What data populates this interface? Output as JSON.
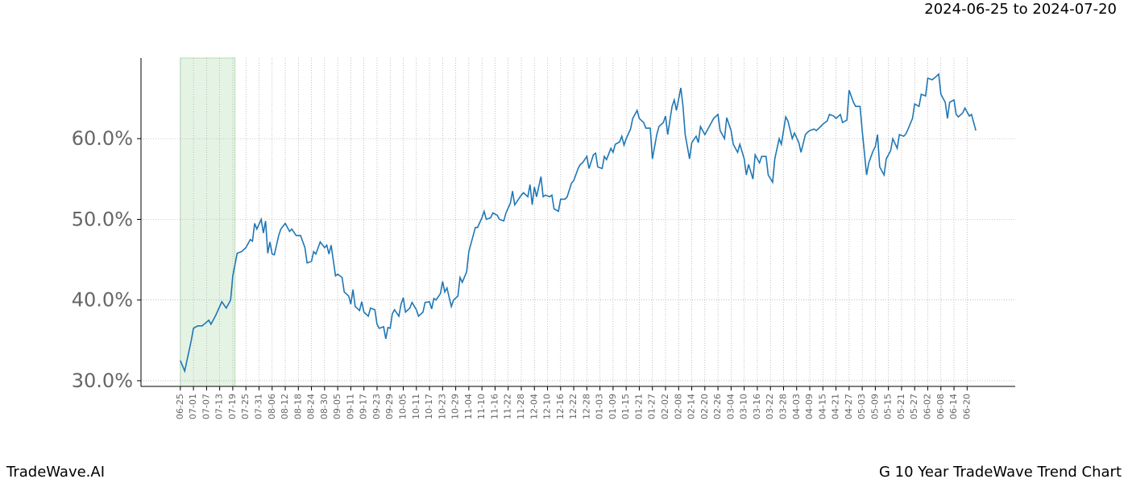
{
  "chart_data": {
    "type": "line",
    "subtitle": "2024-06-25 to 2024-07-20",
    "footer_left": "TradeWave.AI",
    "footer_right": "G 10 Year TradeWave Trend Chart",
    "highlight": {
      "x": [
        0,
        25
      ],
      "color": "#2ca02c"
    },
    "xlim": [
      -18,
      382
    ],
    "ylim": [
      29.3,
      70
    ],
    "grid": true,
    "xticks": [
      {
        "value": 0,
        "label": "06-25"
      },
      {
        "value": 6,
        "label": "07-01"
      },
      {
        "value": 12,
        "label": "07-07"
      },
      {
        "value": 18,
        "label": "07-13"
      },
      {
        "value": 24,
        "label": "07-19"
      },
      {
        "value": 30,
        "label": "07-25"
      },
      {
        "value": 36,
        "label": "07-31"
      },
      {
        "value": 42,
        "label": "08-06"
      },
      {
        "value": 48,
        "label": "08-12"
      },
      {
        "value": 54,
        "label": "08-18"
      },
      {
        "value": 60,
        "label": "08-24"
      },
      {
        "value": 66,
        "label": "08-30"
      },
      {
        "value": 72,
        "label": "09-05"
      },
      {
        "value": 78,
        "label": "09-11"
      },
      {
        "value": 84,
        "label": "09-17"
      },
      {
        "value": 90,
        "label": "09-23"
      },
      {
        "value": 96,
        "label": "09-29"
      },
      {
        "value": 102,
        "label": "10-05"
      },
      {
        "value": 108,
        "label": "10-11"
      },
      {
        "value": 114,
        "label": "10-17"
      },
      {
        "value": 120,
        "label": "10-23"
      },
      {
        "value": 126,
        "label": "10-29"
      },
      {
        "value": 132,
        "label": "11-04"
      },
      {
        "value": 138,
        "label": "11-10"
      },
      {
        "value": 144,
        "label": "11-16"
      },
      {
        "value": 150,
        "label": "11-22"
      },
      {
        "value": 156,
        "label": "11-28"
      },
      {
        "value": 162,
        "label": "12-04"
      },
      {
        "value": 168,
        "label": "12-10"
      },
      {
        "value": 174,
        "label": "12-16"
      },
      {
        "value": 180,
        "label": "12-22"
      },
      {
        "value": 186,
        "label": "12-28"
      },
      {
        "value": 192,
        "label": "01-03"
      },
      {
        "value": 198,
        "label": "01-09"
      },
      {
        "value": 204,
        "label": "01-15"
      },
      {
        "value": 210,
        "label": "01-21"
      },
      {
        "value": 216,
        "label": "01-27"
      },
      {
        "value": 222,
        "label": "02-02"
      },
      {
        "value": 228,
        "label": "02-08"
      },
      {
        "value": 234,
        "label": "02-14"
      },
      {
        "value": 240,
        "label": "02-20"
      },
      {
        "value": 246,
        "label": "02-26"
      },
      {
        "value": 252,
        "label": "03-04"
      },
      {
        "value": 258,
        "label": "03-10"
      },
      {
        "value": 264,
        "label": "03-16"
      },
      {
        "value": 270,
        "label": "03-22"
      },
      {
        "value": 276,
        "label": "03-28"
      },
      {
        "value": 282,
        "label": "04-03"
      },
      {
        "value": 288,
        "label": "04-09"
      },
      {
        "value": 294,
        "label": "04-15"
      },
      {
        "value": 300,
        "label": "04-21"
      },
      {
        "value": 306,
        "label": "04-27"
      },
      {
        "value": 312,
        "label": "05-03"
      },
      {
        "value": 318,
        "label": "05-09"
      },
      {
        "value": 324,
        "label": "05-15"
      },
      {
        "value": 330,
        "label": "05-21"
      },
      {
        "value": 336,
        "label": "05-27"
      },
      {
        "value": 342,
        "label": "06-02"
      },
      {
        "value": 348,
        "label": "06-08"
      },
      {
        "value": 354,
        "label": "06-14"
      },
      {
        "value": 360,
        "label": "06-20"
      }
    ],
    "yticks": [
      {
        "value": 30,
        "label": "30.0%"
      },
      {
        "value": 40,
        "label": "40.0%"
      },
      {
        "value": 50,
        "label": "50.0%"
      },
      {
        "value": 60,
        "label": "60.0%"
      }
    ],
    "series": [
      {
        "color": "#1f77b4",
        "x": [
          0,
          2,
          5,
          6,
          8,
          10,
          13,
          14,
          16,
          19,
          21,
          23,
          24,
          26,
          28,
          30,
          32,
          33,
          34,
          35,
          37,
          38,
          39,
          40,
          41,
          42,
          43,
          45,
          46,
          48,
          50,
          51,
          53,
          55,
          57,
          58,
          60,
          61,
          62,
          64,
          66,
          67,
          68,
          69,
          71,
          72,
          74,
          75,
          77,
          78,
          79,
          80,
          82,
          83,
          84,
          86,
          87,
          89,
          90,
          91,
          93,
          94,
          95,
          96,
          97,
          98,
          100,
          101,
          102,
          103,
          105,
          106,
          108,
          109,
          111,
          112,
          114,
          115,
          116,
          117,
          119,
          120,
          121,
          122,
          124,
          125,
          127,
          128,
          129,
          131,
          132,
          134,
          135,
          136,
          138,
          139,
          140,
          142,
          143,
          145,
          146,
          148,
          149,
          151,
          152,
          153,
          154,
          156,
          157,
          159,
          160,
          161,
          162,
          163,
          165,
          166,
          167,
          169,
          170,
          171,
          173,
          174,
          176,
          177,
          179,
          180,
          182,
          183,
          184,
          186,
          187,
          189,
          190,
          191,
          193,
          194,
          195,
          197,
          198,
          199,
          201,
          202,
          203,
          204,
          206,
          207,
          209,
          210,
          212,
          213,
          215,
          216,
          218,
          219,
          221,
          222,
          223,
          225,
          226,
          227,
          229,
          230,
          231,
          233,
          234,
          236,
          237,
          238,
          240,
          241,
          243,
          244,
          246,
          247,
          249,
          250,
          252,
          253,
          255,
          256,
          258,
          259,
          260,
          262,
          263,
          265,
          266,
          268,
          269,
          271,
          272,
          274,
          275,
          277,
          278,
          280,
          281,
          283,
          284,
          286,
          287,
          288,
          290,
          291,
          293,
          294,
          296,
          297,
          299,
          300,
          302,
          303,
          305,
          306,
          308,
          309,
          311,
          312,
          314,
          315,
          317,
          318,
          319,
          320,
          322,
          323,
          325,
          326,
          328,
          329,
          331,
          332,
          333,
          335,
          336,
          338,
          339,
          341,
          342,
          344,
          345,
          347,
          348,
          350,
          351,
          352,
          354,
          355,
          356,
          358,
          359,
          361,
          362,
          364
        ],
        "values": [
          32.5,
          31.2,
          35,
          36.5,
          36.8,
          36.8,
          37.5,
          37,
          38,
          39.8,
          39,
          40,
          43,
          45.8,
          46,
          46.5,
          47.5,
          47.3,
          49.5,
          48.8,
          50,
          48.3,
          49.8,
          45.8,
          47.2,
          45.7,
          45.6,
          48,
          48.8,
          49.5,
          48.5,
          48.8,
          48,
          48,
          46.5,
          44.6,
          44.8,
          46,
          45.7,
          47.2,
          46.5,
          46.8,
          45.7,
          46.8,
          43,
          43.2,
          42.8,
          41,
          40.5,
          39.5,
          41.3,
          39.2,
          38.7,
          39.8,
          38.5,
          38,
          39,
          38.8,
          37,
          36.5,
          36.7,
          35.2,
          36.6,
          36.5,
          38.3,
          38.8,
          38,
          39.5,
          40.3,
          38.5,
          39,
          39.7,
          38.8,
          38,
          38.5,
          39.7,
          39.8,
          38.9,
          40.2,
          40,
          40.8,
          42.3,
          41,
          41.5,
          39.2,
          40,
          40.5,
          42.8,
          42.2,
          43.5,
          46,
          48,
          49,
          49,
          50.2,
          51,
          50,
          50.2,
          50.8,
          50.5,
          50,
          49.8,
          50.8,
          52,
          53.5,
          51.8,
          52.2,
          53,
          53.3,
          52.8,
          54.3,
          51.8,
          54,
          52.8,
          55.3,
          52.8,
          53,
          52.8,
          53,
          51.3,
          51,
          52.5,
          52.5,
          52.8,
          54.5,
          54.8,
          56.3,
          56.8,
          57,
          57.8,
          56.3,
          58,
          58.2,
          56.5,
          56.3,
          57.8,
          57.4,
          58.8,
          58.3,
          59.3,
          59.6,
          60.3,
          59.2,
          60,
          61.2,
          62.5,
          63.5,
          62.5,
          62,
          61.3,
          61.3,
          57.5,
          60.5,
          61.5,
          62,
          62.8,
          60.5,
          64,
          64.8,
          63.5,
          66.3,
          64,
          60.5,
          57.5,
          59.5,
          60.3,
          59.5,
          61.5,
          60.5,
          61,
          62,
          62.5,
          63,
          61,
          60,
          62.6,
          61,
          59.3,
          58.3,
          59.3,
          57.5,
          55.5,
          56.8,
          55,
          58,
          57,
          57.8,
          57.8,
          55.5,
          54.6,
          57.5,
          60,
          59.3,
          62.7,
          62.2,
          60,
          60.7,
          59.5,
          58.3,
          60.5,
          60.8,
          61,
          61.2,
          61,
          61.5,
          61.8,
          62.2,
          63,
          62.8,
          62.5,
          63,
          62,
          62.3,
          66,
          64.5,
          64,
          64,
          61,
          55.5,
          57,
          58.5,
          59,
          60.5,
          56.5,
          55.5,
          57.5,
          58.5,
          60,
          58.8,
          60.5,
          60.3,
          60.6,
          61.2,
          62.5,
          64.3,
          64,
          65.5,
          65.3,
          67.5,
          67.3,
          67.5,
          68,
          65.5,
          64.5,
          62.5,
          64.5,
          64.8,
          63,
          62.7,
          63.2,
          63.8,
          62.8,
          63,
          61
        ]
      }
    ]
  }
}
